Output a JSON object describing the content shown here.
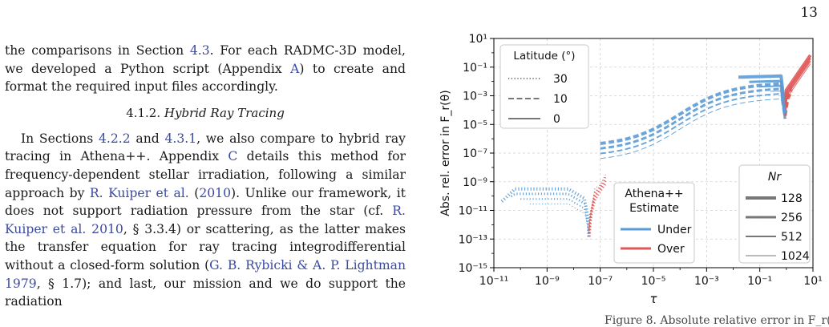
{
  "page_number": "13",
  "left_column": {
    "para1": {
      "t1": "the comparisons in Section ",
      "ref1": "4.3",
      "t2": ". For each RADMC-3D model, we developed a Python script (Appendix ",
      "ref2": "A",
      "t3": ") to create and format the required input files accordingly."
    },
    "section_number": "4.1.2.",
    "section_title": "Hybrid Ray Tracing",
    "para2": {
      "t1": "In Sections ",
      "ref1": "4.2.2",
      "t2": " and ",
      "ref2": "4.3.1",
      "t3": ", we also compare to hybrid ray tracing in Athena++. Appendix ",
      "ref3": "C",
      "t4": " details this method for frequency-dependent stellar irradiation, following a similar approach by ",
      "ref4": "R. Kuiper et al.",
      "t5": " (",
      "ref5": "2010",
      "t6": "). Unlike our framework, it does not support radiation pressure from the star (cf. ",
      "ref6": "R. Kuiper et al. 2010",
      "t7": ", § 3.3.4) or scattering, as the latter makes the transfer equation for ray tracing integrodifferential without a closed-form solution (",
      "ref7": "G. B. Rybicki & A. P. Lightman 1979",
      "t8": ", § 1.7); and last, our mission and we do support the radiation"
    }
  },
  "figure": {
    "caption_fragment": "Figure 8. Absolute relative error in F_r(θ) ...",
    "chart_data": {
      "type": "line",
      "xlabel": "τ",
      "ylabel": "Abs. rel. error in F_r(θ)",
      "xscale": "log",
      "yscale": "log",
      "xlim": [
        1e-11,
        10
      ],
      "ylim": [
        1e-15,
        10
      ],
      "x_tick_labels": [
        "10⁻¹¹",
        "10⁻⁹",
        "10⁻⁷",
        "10⁻⁵",
        "10⁻³",
        "10⁻¹",
        "10¹"
      ],
      "y_tick_labels": [
        "10⁻¹⁵",
        "10⁻¹³",
        "10⁻¹¹",
        "10⁻⁹",
        "10⁻⁷",
        "10⁻⁵",
        "10⁻³",
        "10⁻¹",
        "10¹"
      ],
      "legend_latitude": {
        "title": "Latitude (°)",
        "position": "top-left",
        "entries": [
          {
            "label": "30",
            "style": "dotted"
          },
          {
            "label": "10",
            "style": "dashed"
          },
          {
            "label": "0",
            "style": "solid"
          }
        ]
      },
      "legend_estimate": {
        "title_line1": "Athena++",
        "title_line2": "Estimate",
        "position": "lower-center",
        "entries": [
          {
            "label": "Under",
            "color": "#5b9bd5"
          },
          {
            "label": "Over",
            "color": "#e05a5a"
          }
        ]
      },
      "legend_resolution": {
        "title": "N_r",
        "position": "lower-right",
        "entries": [
          {
            "label": "128",
            "width": 4
          },
          {
            "label": "256",
            "width": 3
          },
          {
            "label": "512",
            "width": 2
          },
          {
            "label": "1024",
            "width": 1
          }
        ]
      },
      "colors": {
        "under": "#5b9bd5",
        "over": "#e05a5a"
      },
      "series_groups": [
        {
          "latitude": "30",
          "style": "dotted",
          "x_range_log": [
            -10.7,
            -6.3
          ],
          "y_plateau_log": -10.5
        },
        {
          "latitude": "10",
          "style": "dashed",
          "x_range_log": [
            -7.0,
            0.0
          ],
          "y_start_log": -6.4,
          "y_peak_log": -2.5
        },
        {
          "latitude": "0",
          "style": "solid",
          "x_range_log": [
            -2.0,
            1.0
          ],
          "y_peak_log": -1.6
        }
      ]
    }
  }
}
